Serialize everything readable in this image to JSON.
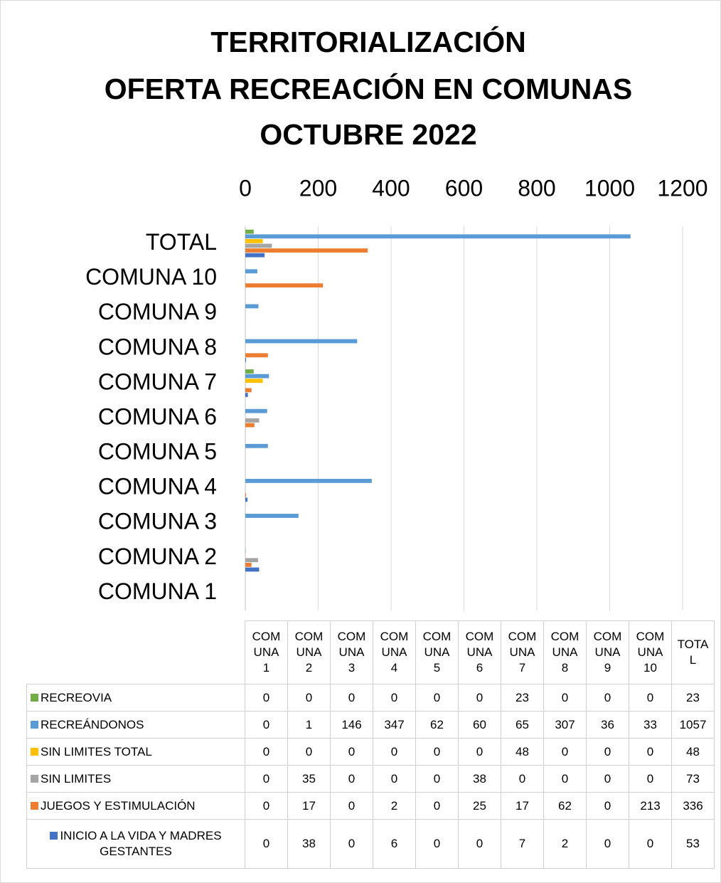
{
  "chart_data": {
    "type": "barh",
    "title": [
      "TERRITORIALIZACIÓN",
      "OFERTA RECREACIÓN EN COMUNAS",
      "OCTUBRE 2022"
    ],
    "categories": [
      "COMUNA 1",
      "COMUNA 2",
      "COMUNA 3",
      "COMUNA 4",
      "COMUNA 5",
      "COMUNA 6",
      "COMUNA 7",
      "COMUNA 8",
      "COMUNA 9",
      "COMUNA 10",
      "TOTAL"
    ],
    "series": [
      {
        "name": "RECREOVIA",
        "color": "#70ad47",
        "values": [
          0,
          0,
          0,
          0,
          0,
          0,
          23,
          0,
          0,
          0,
          23
        ]
      },
      {
        "name": "RECREÁNDONOS",
        "color": "#5b9bd5",
        "values": [
          0,
          1,
          146,
          347,
          62,
          60,
          65,
          307,
          36,
          33,
          1057
        ]
      },
      {
        "name": "SIN LIMITES TOTAL",
        "color": "#ffc000",
        "values": [
          0,
          0,
          0,
          0,
          0,
          0,
          48,
          0,
          0,
          0,
          48
        ]
      },
      {
        "name": "SIN LIMITES",
        "color": "#a5a5a5",
        "values": [
          0,
          35,
          0,
          0,
          0,
          38,
          0,
          0,
          0,
          0,
          73
        ]
      },
      {
        "name": "JUEGOS Y ESTIMULACIÓN",
        "color": "#ed7d31",
        "values": [
          0,
          17,
          0,
          2,
          0,
          25,
          17,
          62,
          0,
          213,
          336
        ]
      },
      {
        "name": "INICIO A LA VIDA Y MADRES GESTANTES",
        "color": "#4472c4",
        "values": [
          0,
          38,
          0,
          6,
          0,
          0,
          7,
          2,
          0,
          0,
          53
        ]
      }
    ],
    "xlim": [
      0,
      1200
    ],
    "xticks": [
      0,
      200,
      400,
      600,
      800,
      1000,
      1200
    ],
    "grid": true,
    "data_table": true
  }
}
